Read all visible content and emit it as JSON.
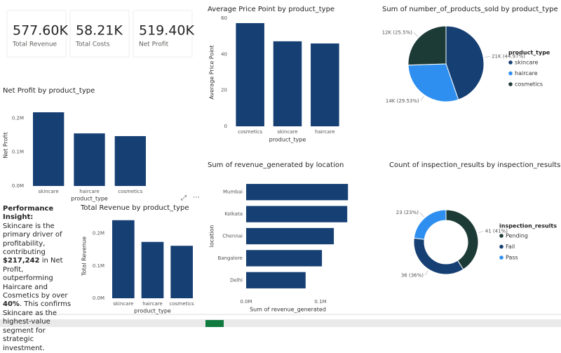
{
  "kpis": [
    {
      "value": "577.60K",
      "label": "Total Revenue"
    },
    {
      "value": "58.21K",
      "label": "Total Costs"
    },
    {
      "value": "519.40K",
      "label": "Net Profit"
    }
  ],
  "insight": {
    "title": "Performance Insight:",
    "segments": [
      {
        "text": "Skincare is the primary driver of profitability, contributing ",
        "bold": false
      },
      {
        "text": "$217,242",
        "bold": true
      },
      {
        "text": " in Net Profit, outperforming Haircare and Cosmetics by over ",
        "bold": false
      },
      {
        "text": "40%",
        "bold": true
      },
      {
        "text": ". This confirms Skincare as the highest-value segment for strategic investment.",
        "bold": false
      }
    ]
  },
  "chart_data": [
    {
      "type": "bar",
      "title": "Net Profit by product_type",
      "x_label": "product_type",
      "y_label": "Net Profit",
      "categories": [
        "skincare",
        "haircare",
        "cosmetics"
      ],
      "values": [
        217242,
        155000,
        147000
      ],
      "color": "#163f73",
      "ylim": [
        0,
        240000
      ],
      "yticks": [
        {
          "value": 0,
          "label": "0.0M"
        },
        {
          "value": 100000,
          "label": "0.1M"
        },
        {
          "value": 200000,
          "label": "0.2M"
        }
      ]
    },
    {
      "type": "bar",
      "title": "Total Revenue by product_type",
      "x_label": "product_type",
      "y_label": "Total Revenue",
      "categories": [
        "skincare",
        "haircare",
        "cosmetics"
      ],
      "values": [
        241000,
        174000,
        162000
      ],
      "color": "#163f73",
      "ylim": [
        0,
        260000
      ],
      "yticks": [
        {
          "value": 0,
          "label": "0.0M"
        },
        {
          "value": 100000,
          "label": "0.1M"
        },
        {
          "value": 200000,
          "label": "0.2M"
        }
      ]
    },
    {
      "type": "bar",
      "title": "Average Price Point by product_type",
      "x_label": "product_type",
      "y_label": "Average Price Point",
      "categories": [
        "cosmetics",
        "skincare",
        "haircare"
      ],
      "values": [
        57.3,
        47.2,
        46.0
      ],
      "color": "#163f73",
      "ylim": [
        0,
        60
      ],
      "yticks": [
        0,
        20,
        40,
        60
      ]
    },
    {
      "type": "pie",
      "title": "Sum of number_of_products_sold by product_type",
      "legend_title": "product_type",
      "categories": [
        "skincare",
        "haircare",
        "cosmetics"
      ],
      "values": [
        21000,
        14000,
        12000
      ],
      "value_labels": [
        "21K (44.97%)",
        "14K (29.53%)",
        "12K (25.5%)"
      ],
      "colors": [
        "#163f73",
        "#2e8ff0",
        "#1d3b36"
      ]
    },
    {
      "type": "hbar",
      "title": "Sum of revenue_generated by location",
      "x_label": "Sum of revenue_generated",
      "y_label": "location",
      "categories": [
        "Mumbai",
        "Kolkata",
        "Chennai",
        "Bangalore",
        "Delhi"
      ],
      "values": [
        137000,
        136000,
        118000,
        102000,
        80000
      ],
      "color": "#163f73",
      "xlim": [
        0,
        150000
      ],
      "xticks": [
        {
          "value": 0,
          "label": "0.0M"
        },
        {
          "value": 100000,
          "label": "0.1M"
        }
      ]
    },
    {
      "type": "donut",
      "title": "Count of inspection_results by inspection_results",
      "legend_title": "inspection_results",
      "categories": [
        "Pending",
        "Fail",
        "Pass"
      ],
      "values": [
        41,
        36,
        23
      ],
      "value_labels": [
        "41 (41%)",
        "36 (36%)",
        "23 (23%)"
      ],
      "colors": [
        "#1d3b36",
        "#163f73",
        "#2e8ff0"
      ]
    }
  ]
}
